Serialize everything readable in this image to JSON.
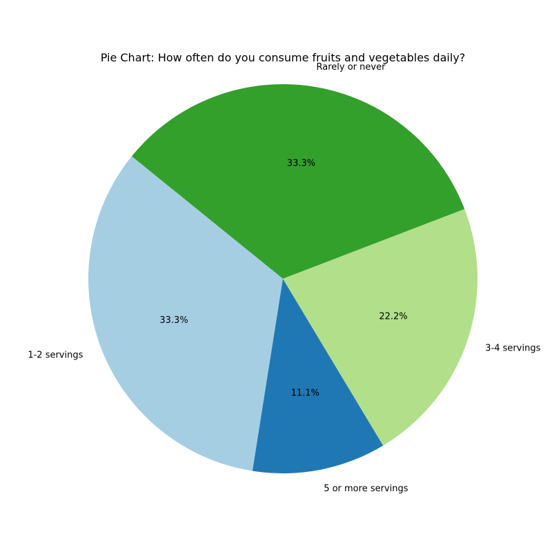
{
  "chart_data": {
    "type": "pie",
    "title": "Pie Chart: How often do you consume fruits and vegetables daily?",
    "slices": [
      {
        "label": "Rarely or never",
        "value": 33.3,
        "pct_label": "33.3%",
        "color": "#33a02c"
      },
      {
        "label": "1-2 servings",
        "value": 33.3,
        "pct_label": "33.3%",
        "color": "#a6cee3"
      },
      {
        "label": "5 or more servings",
        "value": 11.1,
        "pct_label": "11.1%",
        "color": "#1f78b4"
      },
      {
        "label": "3-4 servings",
        "value": 22.2,
        "pct_label": "22.2%",
        "color": "#b2df8a"
      }
    ],
    "start_angle_deg": 21,
    "direction": "counterclockwise"
  }
}
